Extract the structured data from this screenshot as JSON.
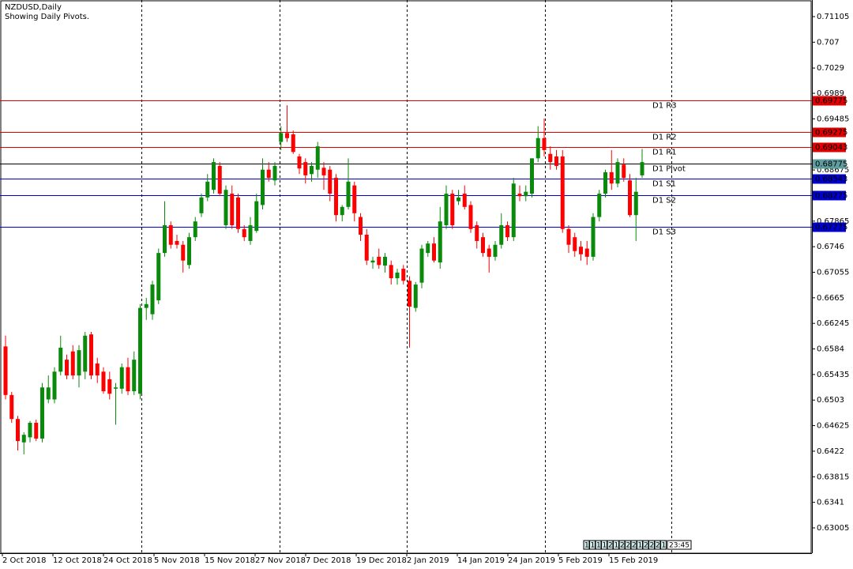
{
  "chart_data": {
    "type": "candlestick",
    "title": "NZDUSD,Daily",
    "subtitle": "Showing Daily Pivots.",
    "up_color": "#0a8a0a",
    "down_color": "#ff0000",
    "ylim": [
      0.62604,
      0.71368
    ],
    "yticks": [
      0.71105,
      0.707,
      0.7029,
      0.6989,
      0.69485,
      0.68675,
      0.67865,
      0.6746,
      0.67055,
      0.6665,
      0.66245,
      0.6584,
      0.65435,
      0.6503,
      0.64625,
      0.6422,
      0.63815,
      0.6341,
      0.63005
    ],
    "categories": [
      "2 Oct 2018",
      null,
      null,
      null,
      null,
      null,
      null,
      null,
      "12 Oct 2018",
      null,
      null,
      null,
      null,
      null,
      null,
      null,
      "24 Oct 2018",
      null,
      null,
      null,
      null,
      null,
      null,
      null,
      "5 Nov 2018",
      null,
      null,
      null,
      null,
      null,
      null,
      null,
      "15 Nov 2018",
      null,
      null,
      null,
      null,
      null,
      null,
      null,
      "27 Nov 2018",
      null,
      null,
      null,
      null,
      null,
      null,
      null,
      "7 Dec 2018",
      null,
      null,
      null,
      null,
      null,
      null,
      null,
      "19 Dec 2018",
      null,
      null,
      null,
      null,
      null,
      null,
      null,
      "2 Jan 2019",
      null,
      null,
      null,
      null,
      null,
      null,
      null,
      "14 Jan 2019",
      null,
      null,
      null,
      null,
      null,
      null,
      null,
      "24 Jan 2019",
      null,
      null,
      null,
      null,
      null,
      null,
      null,
      "5 Feb 2019",
      null,
      null,
      null,
      null,
      null,
      null,
      null,
      "15 Feb 2019",
      null,
      null,
      null,
      null,
      null,
      null,
      null,
      null
    ],
    "candles": [
      [
        0.6588,
        0.6605,
        0.6504,
        0.6511
      ],
      [
        0.6511,
        0.6516,
        0.6467,
        0.6473
      ],
      [
        0.6473,
        0.6478,
        0.6423,
        0.6438
      ],
      [
        0.6436,
        0.6452,
        0.6417,
        0.6448
      ],
      [
        0.6444,
        0.647,
        0.6436,
        0.6467
      ],
      [
        0.6467,
        0.6472,
        0.6438,
        0.6442
      ],
      [
        0.6442,
        0.653,
        0.6436,
        0.6523
      ],
      [
        0.6504,
        0.6542,
        0.6498,
        0.6523
      ],
      [
        0.6504,
        0.6555,
        0.6498,
        0.6548
      ],
      [
        0.6548,
        0.6605,
        0.6542,
        0.6586
      ],
      [
        0.6567,
        0.6575,
        0.6536,
        0.6542
      ],
      [
        0.658,
        0.659,
        0.6536,
        0.6542
      ],
      [
        0.6542,
        0.659,
        0.6523,
        0.6582
      ],
      [
        0.6548,
        0.6611,
        0.6536,
        0.6605
      ],
      [
        0.6607,
        0.6611,
        0.6536,
        0.6542
      ],
      [
        0.6561,
        0.657,
        0.653,
        0.6542
      ],
      [
        0.6548,
        0.6555,
        0.6513,
        0.6517
      ],
      [
        0.6536,
        0.6548,
        0.6504,
        0.6513
      ],
      [
        0.6521,
        0.653,
        0.6464,
        0.6523
      ],
      [
        0.6521,
        0.6561,
        0.6513,
        0.6555
      ],
      [
        0.6555,
        0.657,
        0.6511,
        0.6517
      ],
      [
        0.6517,
        0.658,
        0.6511,
        0.6567
      ],
      [
        0.6513,
        0.6655,
        0.6504,
        0.6649
      ],
      [
        0.6649,
        0.6665,
        0.663,
        0.6655
      ],
      [
        0.6639,
        0.6692,
        0.663,
        0.6686
      ],
      [
        0.6661,
        0.6743,
        0.6655,
        0.6736
      ],
      [
        0.6736,
        0.6818,
        0.673,
        0.678
      ],
      [
        0.678,
        0.6786,
        0.6743,
        0.6749
      ],
      [
        0.6755,
        0.6765,
        0.6743,
        0.6749
      ],
      [
        0.6749,
        0.6755,
        0.6705,
        0.6724
      ],
      [
        0.6717,
        0.6768,
        0.6711,
        0.6761
      ],
      [
        0.6761,
        0.6793,
        0.6755,
        0.6786
      ],
      [
        0.6799,
        0.683,
        0.6793,
        0.6824
      ],
      [
        0.6824,
        0.6861,
        0.6818,
        0.6849
      ],
      [
        0.6836,
        0.6886,
        0.683,
        0.688
      ],
      [
        0.6874,
        0.688,
        0.6826,
        0.683
      ],
      [
        0.678,
        0.6843,
        0.6774,
        0.6836
      ],
      [
        0.683,
        0.6843,
        0.6774,
        0.678
      ],
      [
        0.6824,
        0.683,
        0.6768,
        0.6774
      ],
      [
        0.6774,
        0.678,
        0.6755,
        0.6761
      ],
      [
        0.6755,
        0.6793,
        0.6749,
        0.678
      ],
      [
        0.6771,
        0.683,
        0.6768,
        0.6818
      ],
      [
        0.6812,
        0.6886,
        0.6805,
        0.6868
      ],
      [
        0.6868,
        0.688,
        0.6849,
        0.6855
      ],
      [
        0.6851,
        0.688,
        0.6843,
        0.6874
      ],
      [
        0.6912,
        0.6937,
        0.6899,
        0.6926
      ],
      [
        0.6926,
        0.697,
        0.6912,
        0.6918
      ],
      [
        0.6924,
        0.693,
        0.6893,
        0.6896
      ],
      [
        0.6889,
        0.6893,
        0.6861,
        0.687
      ],
      [
        0.688,
        0.6886,
        0.6846,
        0.6859
      ],
      [
        0.6861,
        0.688,
        0.6849,
        0.6874
      ],
      [
        0.6868,
        0.6912,
        0.6855,
        0.6905
      ],
      [
        0.6871,
        0.688,
        0.6836,
        0.6859
      ],
      [
        0.6868,
        0.6874,
        0.6818,
        0.683
      ],
      [
        0.6855,
        0.6861,
        0.6786,
        0.6796
      ],
      [
        0.6796,
        0.6812,
        0.6786,
        0.6809
      ],
      [
        0.6809,
        0.6886,
        0.6805,
        0.6849
      ],
      [
        0.6843,
        0.6849,
        0.6786,
        0.6799
      ],
      [
        0.6793,
        0.6799,
        0.6755,
        0.6765
      ],
      [
        0.6765,
        0.6774,
        0.6717,
        0.6724
      ],
      [
        0.6721,
        0.673,
        0.6711,
        0.6724
      ],
      [
        0.673,
        0.6743,
        0.6711,
        0.6717
      ],
      [
        0.6716,
        0.6736,
        0.6705,
        0.673
      ],
      [
        0.6717,
        0.6724,
        0.6686,
        0.6696
      ],
      [
        0.6696,
        0.6711,
        0.6686,
        0.6705
      ],
      [
        0.6711,
        0.6717,
        0.6686,
        0.6692
      ],
      [
        0.6692,
        0.6699,
        0.6586,
        0.6651
      ],
      [
        0.6649,
        0.669,
        0.6643,
        0.6686
      ],
      [
        0.6689,
        0.6749,
        0.668,
        0.6743
      ],
      [
        0.6736,
        0.6755,
        0.673,
        0.6751
      ],
      [
        0.6751,
        0.6761,
        0.6721,
        0.6724
      ],
      [
        0.6721,
        0.6809,
        0.6711,
        0.6786
      ],
      [
        0.678,
        0.6843,
        0.6774,
        0.683
      ],
      [
        0.683,
        0.6836,
        0.6774,
        0.678
      ],
      [
        0.6818,
        0.6836,
        0.6812,
        0.6824
      ],
      [
        0.683,
        0.6843,
        0.6805,
        0.6809
      ],
      [
        0.6812,
        0.6818,
        0.6768,
        0.6774
      ],
      [
        0.678,
        0.6786,
        0.6743,
        0.6755
      ],
      [
        0.6761,
        0.6768,
        0.673,
        0.6736
      ],
      [
        0.6743,
        0.6749,
        0.6705,
        0.673
      ],
      [
        0.673,
        0.6755,
        0.6724,
        0.6749
      ],
      [
        0.6749,
        0.6799,
        0.6743,
        0.678
      ],
      [
        0.678,
        0.6786,
        0.6755,
        0.6761
      ],
      [
        0.6761,
        0.6855,
        0.6755,
        0.6846
      ],
      [
        0.683,
        0.6843,
        0.6818,
        0.6826
      ],
      [
        0.6826,
        0.6843,
        0.6818,
        0.6833
      ],
      [
        0.683,
        0.6886,
        0.6824,
        0.6886
      ],
      [
        0.6886,
        0.6937,
        0.688,
        0.6918
      ],
      [
        0.6918,
        0.6949,
        0.6889,
        0.6899
      ],
      [
        0.6893,
        0.6905,
        0.6868,
        0.688
      ],
      [
        0.6889,
        0.6899,
        0.6868,
        0.6874
      ],
      [
        0.6889,
        0.6899,
        0.6768,
        0.6774
      ],
      [
        0.6774,
        0.678,
        0.6736,
        0.6749
      ],
      [
        0.6761,
        0.6768,
        0.673,
        0.6739
      ],
      [
        0.6746,
        0.6755,
        0.6724,
        0.6734
      ],
      [
        0.6743,
        0.6755,
        0.6717,
        0.673
      ],
      [
        0.673,
        0.6799,
        0.6724,
        0.6793
      ],
      [
        0.6793,
        0.6836,
        0.6786,
        0.683
      ],
      [
        0.683,
        0.6868,
        0.6824,
        0.6864
      ],
      [
        0.6864,
        0.6899,
        0.6836,
        0.6846
      ],
      [
        0.6846,
        0.6886,
        0.684,
        0.688
      ],
      [
        0.6876,
        0.6886,
        0.6849,
        0.6855
      ],
      [
        0.6851,
        0.6861,
        0.6793,
        0.6796
      ],
      [
        0.6796,
        0.6855,
        0.6755,
        0.6833
      ],
      [
        0.6859,
        0.6901,
        0.6855,
        0.688
      ]
    ],
    "pivots": [
      {
        "name": "D1 R3",
        "value": 0.69775,
        "color": "#e00000",
        "line_color": "#e00000"
      },
      {
        "name": "D1 R2",
        "value": 0.69275,
        "color": "#e00000",
        "line_color": "#e00000"
      },
      {
        "name": "D1 R1",
        "value": 0.69043,
        "color": "#e00000",
        "line_color": "#e00000"
      },
      {
        "name": "D1 Pivot",
        "value": 0.68775,
        "color": "#5f9ea0",
        "line_color": "#000000"
      },
      {
        "name": "D1 S1",
        "value": 0.68543,
        "color": "#0000cc",
        "line_color": "#0000cc"
      },
      {
        "name": "D1 S2",
        "value": 0.68275,
        "color": "#0000cc",
        "line_color": "#0000cc"
      },
      {
        "name": "D1 S3",
        "value": 0.67775,
        "color": "#0000cc",
        "line_color": "#0000cc"
      }
    ],
    "status_boxes": [
      "1",
      "1",
      "1",
      "1",
      "2",
      "1",
      "2",
      "2",
      "2",
      "1",
      "2",
      "2",
      "2",
      "1"
    ],
    "timer": "23:45"
  }
}
